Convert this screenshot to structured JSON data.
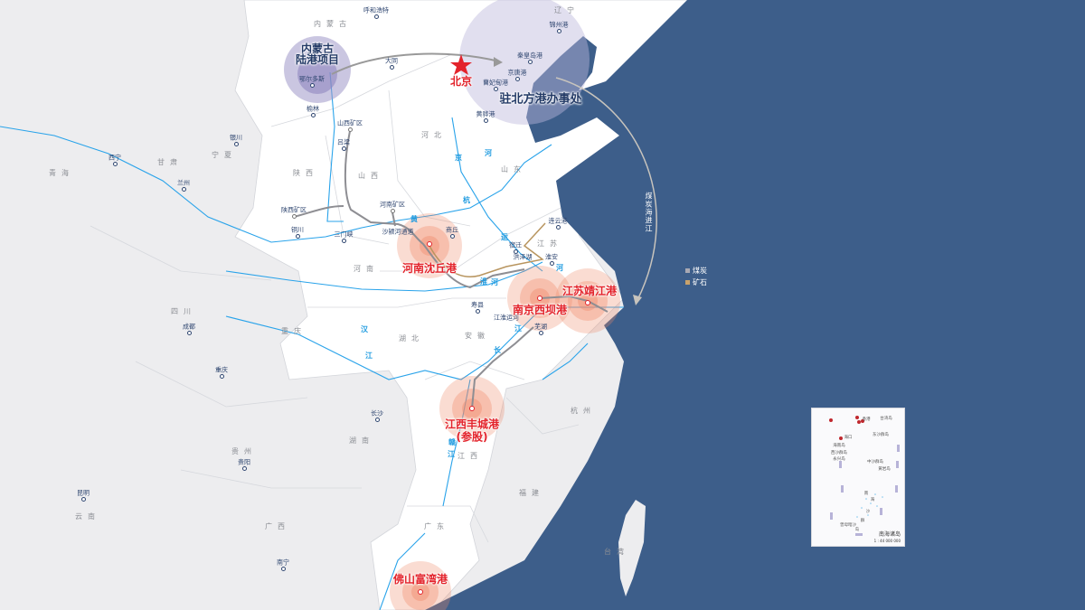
{
  "colors": {
    "sea": "#3d5e8a",
    "land_focus": "#ffffff",
    "land_other": "#ededef",
    "river": "#29a3ea",
    "port_accent": "#e3232b",
    "hub_circle": "#bcb8dc",
    "coal_route": "#8e8e93",
    "ore_route": "#b8955f"
  },
  "provinces": [
    "内蒙古",
    "辽宁",
    "河北",
    "山东",
    "山西",
    "陕西",
    "宁夏",
    "甘肃",
    "青海",
    "河南",
    "江苏",
    "安徽",
    "湖北",
    "四川",
    "重庆",
    "江西",
    "湖南",
    "贵州",
    "云南",
    "广西",
    "广东",
    "福建",
    "杭州",
    "台湾"
  ],
  "cities": [
    "呼和浩特",
    "大同",
    "鄂尔多斯",
    "榆林",
    "吕梁",
    "银川",
    "西宁",
    "兰州",
    "铜川",
    "三门峡",
    "商丘",
    "寿县",
    "芜湖",
    "宿迁",
    "淮安",
    "连云港",
    "锦州港",
    "秦皇岛港",
    "京唐港",
    "曹妃甸港",
    "黄骅港",
    "成都",
    "重庆",
    "长沙",
    "贵阳",
    "昆明",
    "南宁"
  ],
  "mines": [
    "山西矿区",
    "陕西矿区",
    "河南矿区"
  ],
  "notes": [
    "沙颍河通道",
    "洪泽湖",
    "江淮运河"
  ],
  "rivers": [
    "黄",
    "京",
    "杭",
    "运",
    "河",
    "淮",
    "河",
    "汉",
    "江",
    "长",
    "江",
    "赣",
    "江",
    "河"
  ],
  "capital": {
    "label": "北京",
    "icon": "red-star-icon"
  },
  "hubs": [
    {
      "label": "内蒙古\n陆港项目"
    },
    {
      "label": "驻北方港办事处"
    }
  ],
  "ports": [
    {
      "label": "河南沈丘港"
    },
    {
      "label": "南京西坝港"
    },
    {
      "label": "江苏靖江港"
    },
    {
      "label": "江西丰城港\n(参股)"
    },
    {
      "label": "佛山富湾港"
    }
  ],
  "sea_route_label": "煤炭海进江",
  "legend": [
    {
      "label": "煤炭",
      "color": "#a9a9b3"
    },
    {
      "label": "矿石",
      "color": "#c9a26b"
    }
  ],
  "inset": {
    "title": "南海诸岛",
    "scale": "1 : 44 000 000",
    "labels": [
      "台湾岛",
      "香港",
      "海口",
      "东沙群岛",
      "海南岛",
      "西沙群岛",
      "永兴岛",
      "中沙群岛",
      "黄岩岛",
      "南",
      "海",
      "沙",
      "群",
      "岛",
      "曾母暗沙"
    ]
  }
}
